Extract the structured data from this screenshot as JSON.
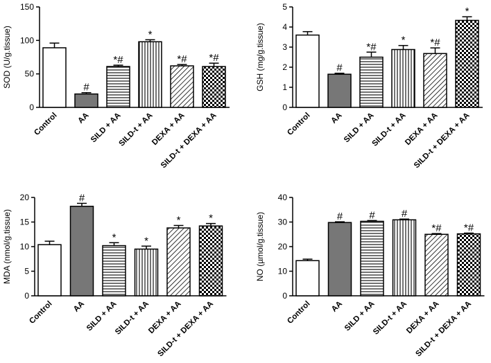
{
  "chart_data": [
    {
      "type": "bar",
      "ylabel": "SOD (U/g.tissue)",
      "ylim": [
        0,
        150
      ],
      "yticks": [
        0,
        50,
        100,
        150
      ],
      "categories": [
        "Control",
        "AA",
        "SILD + AA",
        "SILD-t + AA",
        "DEXA + AA",
        "SILD-t + DEXA + AA"
      ],
      "values": [
        89,
        20,
        61,
        98,
        62,
        61
      ],
      "errors": [
        7,
        2,
        2,
        3,
        2,
        5
      ],
      "fills": [
        "white",
        "gray",
        "hlines",
        "vlines",
        "diag",
        "checker"
      ],
      "markers": [
        "",
        "#",
        "*#",
        "*",
        "*#",
        "*#"
      ]
    },
    {
      "type": "bar",
      "ylabel": "GSH (mg/g.tissue)",
      "ylim": [
        0,
        5
      ],
      "yticks": [
        0,
        1,
        2,
        3,
        4,
        5
      ],
      "categories": [
        "Control",
        "AA",
        "SILD + AA",
        "SILD-t + AA",
        "DEXA + AA",
        "SILD-t + DEXA + AA"
      ],
      "values": [
        3.6,
        1.65,
        2.5,
        2.88,
        2.68,
        4.33
      ],
      "errors": [
        0.17,
        0.05,
        0.25,
        0.2,
        0.28,
        0.18
      ],
      "fills": [
        "white",
        "gray",
        "hlines",
        "vlines",
        "diag",
        "checker"
      ],
      "markers": [
        "",
        "#",
        "*#",
        "*",
        "*#",
        "*"
      ]
    },
    {
      "type": "bar",
      "ylabel": "MDA (nmol/g.tissue)",
      "ylim": [
        0,
        20
      ],
      "yticks": [
        0,
        5,
        10,
        15,
        20
      ],
      "categories": [
        "Control",
        "AA",
        "SILD + AA",
        "SILD-t + AA",
        "DEXA + AA",
        "SILD-t + DEXA + AA"
      ],
      "values": [
        10.4,
        18.2,
        10.2,
        9.5,
        13.8,
        14.2
      ],
      "errors": [
        0.7,
        0.6,
        0.6,
        0.6,
        0.5,
        0.5
      ],
      "fills": [
        "white",
        "gray",
        "hlines",
        "vlines",
        "diag",
        "checker"
      ],
      "markers": [
        "",
        "#",
        "*",
        "*",
        "*",
        "*"
      ]
    },
    {
      "type": "bar",
      "ylabel": "NO (µmol/g.tissue)",
      "ylim": [
        0,
        40
      ],
      "yticks": [
        0,
        10,
        20,
        30,
        40
      ],
      "categories": [
        "Control",
        "AA",
        "SILD + AA",
        "SILD-t + AA",
        "DEXA + AA",
        "SILD-t + DEXA + AA"
      ],
      "values": [
        14.3,
        29.8,
        30.3,
        30.9,
        25.0,
        25.2
      ],
      "errors": [
        0.6,
        0.3,
        0.3,
        0.3,
        0.3,
        0.3
      ],
      "fills": [
        "white",
        "gray",
        "hlines",
        "vlines",
        "diag",
        "checker"
      ],
      "markers": [
        "",
        "#",
        "#",
        "#",
        "*#",
        "*#"
      ]
    }
  ]
}
